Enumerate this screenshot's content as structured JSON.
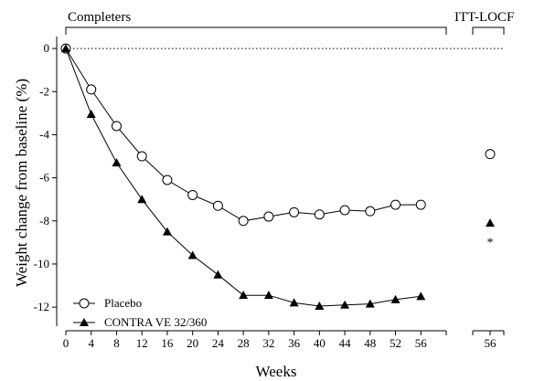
{
  "chart_data": {
    "type": "line",
    "xlabel": "Weeks",
    "ylabel": "Weight change from baseline (%)",
    "xlim": [
      0,
      60
    ],
    "ylim": [
      -12.8,
      0.3
    ],
    "x_ticks": [
      0,
      4,
      8,
      12,
      16,
      20,
      24,
      28,
      32,
      36,
      40,
      44,
      48,
      52,
      56
    ],
    "y_ticks": [
      0,
      -2,
      -4,
      -6,
      -8,
      -10,
      -12
    ],
    "reference_line": {
      "y": 0,
      "style": "dotted"
    },
    "brackets": [
      {
        "label": "Completers",
        "x_from": 0,
        "x_to": 59
      },
      {
        "label": "ITT-LOCF",
        "x_from": 56,
        "x_to": 56
      }
    ],
    "legend": {
      "position": "bottom-left"
    },
    "series": [
      {
        "name": "Placebo",
        "marker": "open-circle",
        "x": [
          0,
          4,
          8,
          12,
          16,
          20,
          24,
          28,
          32,
          36,
          40,
          44,
          48,
          52,
          56
        ],
        "y": [
          0,
          -1.9,
          -3.6,
          -5.0,
          -6.1,
          -6.8,
          -7.3,
          -8.0,
          -7.8,
          -7.6,
          -7.7,
          -7.5,
          -7.55,
          -7.25,
          -7.25
        ]
      },
      {
        "name": "CONTRA VE 32/360",
        "marker": "filled-triangle",
        "x": [
          0,
          4,
          8,
          12,
          16,
          20,
          24,
          28,
          32,
          36,
          40,
          44,
          48,
          52,
          56
        ],
        "y": [
          0,
          -3.05,
          -5.3,
          -7.0,
          -8.5,
          -9.6,
          -10.5,
          -11.45,
          -11.45,
          -11.8,
          -11.95,
          -11.9,
          -11.85,
          -11.65,
          -11.5
        ]
      }
    ],
    "itt_locf": {
      "x_tick": "56",
      "points": [
        {
          "series": "Placebo",
          "x": 56,
          "y": -4.9,
          "marker": "open-circle"
        },
        {
          "series": "CONTRA VE 32/360",
          "x": 56,
          "y": -8.1,
          "marker": "filled-triangle"
        }
      ],
      "annotation": {
        "text": "*",
        "y": -8.8
      }
    }
  }
}
